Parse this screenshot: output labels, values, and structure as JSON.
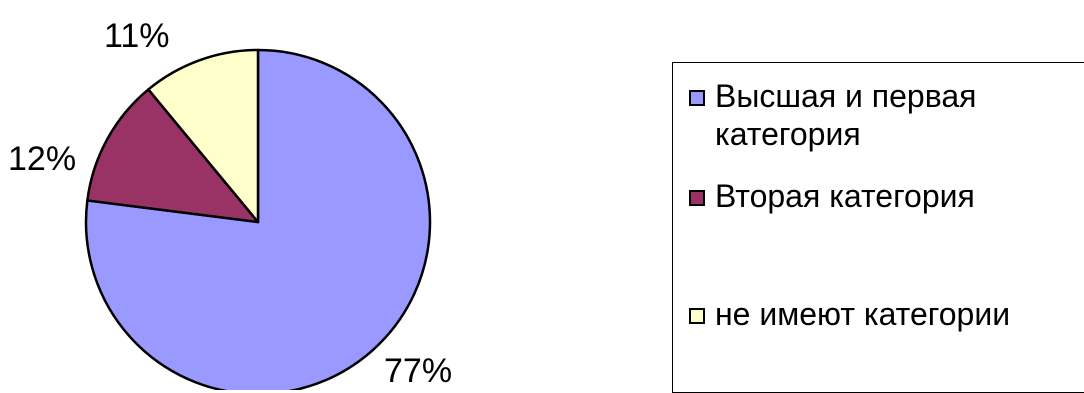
{
  "chart_data": {
    "type": "pie",
    "title": "",
    "slices": [
      {
        "label": "Высшая и первая категория",
        "value": 77,
        "display": "77%",
        "color": "#9999FF"
      },
      {
        "label": "Вторая категория",
        "value": 12,
        "display": "12%",
        "color": "#993366"
      },
      {
        "label": "не имеют категории",
        "value": 11,
        "display": "11%",
        "color": "#FFFFCC"
      }
    ],
    "legend_position": "right",
    "start_angle_deg": 0,
    "direction": "clockwise"
  }
}
